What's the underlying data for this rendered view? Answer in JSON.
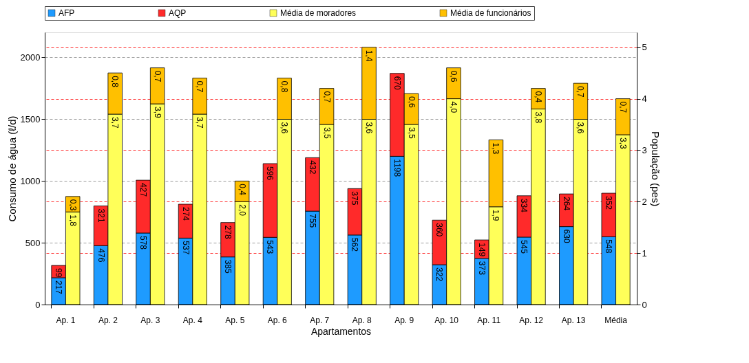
{
  "chart_data": {
    "type": "bar",
    "stacked": true,
    "xlabel": "Apartamentos",
    "ylabel": "Consumo de  água  (ℓ/d)",
    "y2label": "População (pes)",
    "categories": [
      "Ap. 1",
      "Ap. 2",
      "Ap. 3",
      "Ap. 4",
      "Ap. 5",
      "Ap. 6",
      "Ap. 7",
      "Ap. 8",
      "Ap. 9",
      "Ap. 10",
      "Ap. 11",
      "Ap. 12",
      "Ap. 13",
      "Média"
    ],
    "series": [
      {
        "name": "AFP",
        "color": "#1e9bff",
        "axis": "y",
        "values": [
          217,
          476,
          578,
          537,
          385,
          543,
          755,
          562,
          1198,
          322,
          373,
          545,
          630,
          548
        ],
        "value_labels": [
          "217",
          "476",
          "578",
          "537",
          "385",
          "543",
          "755",
          "562",
          "1198",
          "322",
          "373",
          "545",
          "630",
          "548"
        ]
      },
      {
        "name": "AQP",
        "color": "#ff2a2a",
        "axis": "y",
        "values": [
          99,
          321,
          427,
          274,
          278,
          596,
          432,
          375,
          670,
          360,
          149,
          334,
          264,
          352
        ],
        "value_labels": [
          "99",
          "321",
          "427",
          "274",
          "278",
          "596",
          "432",
          "375",
          "670",
          "360",
          "149",
          "334",
          "264",
          "352"
        ]
      },
      {
        "name": "Média de moradores",
        "color": "#ffff59",
        "axis": "y2",
        "values": [
          1.8,
          3.7,
          3.9,
          3.7,
          2.0,
          3.6,
          3.5,
          3.6,
          3.5,
          4.0,
          1.9,
          3.8,
          3.6,
          3.3
        ],
        "value_labels": [
          "1,8",
          "3,7",
          "3,9",
          "3,7",
          "2,0",
          "3,6",
          "3,5",
          "3,6",
          "3,5",
          "4,0",
          "1,9",
          "3,8",
          "3,6",
          "3,3"
        ]
      },
      {
        "name": "Média de funcionários",
        "color": "#ffc000",
        "axis": "y2",
        "values": [
          0.3,
          0.8,
          0.7,
          0.7,
          0.4,
          0.8,
          0.7,
          1.4,
          0.6,
          0.6,
          1.3,
          0.4,
          0.7,
          0.7
        ],
        "value_labels": [
          "0,3",
          "0,8",
          "0,7",
          "0,7",
          "0,4",
          "0,8",
          "0,7",
          "1,4",
          "0,6",
          "0,6",
          "1,3",
          "0,4",
          "0,7",
          "0,7"
        ]
      }
    ],
    "ylim": [
      0,
      2200
    ],
    "yticks": [
      0,
      500,
      1000,
      1500,
      2000
    ],
    "y2lim": [
      0,
      5.29
    ],
    "y2ticks": [
      0,
      1,
      2,
      3,
      4,
      5
    ],
    "grid": true,
    "legend": "top"
  }
}
